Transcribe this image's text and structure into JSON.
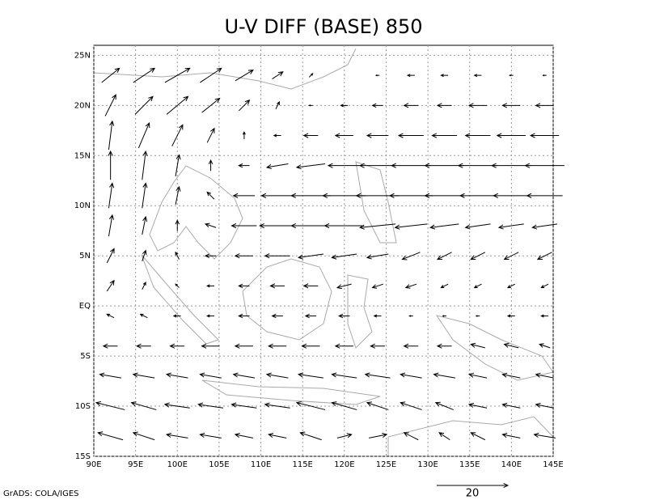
{
  "chart_data": {
    "type": "vector",
    "title": "U-V DIFF (BASE) 850",
    "footer": "GrADS: COLA/IGES",
    "reference_vector": 20,
    "color": "#000000",
    "grid": true,
    "xlim": [
      90,
      145
    ],
    "ylim": [
      -15,
      26
    ],
    "xticks": [
      {
        "value": 90,
        "label": "90E"
      },
      {
        "value": 95,
        "label": "95E"
      },
      {
        "value": 100,
        "label": "100E"
      },
      {
        "value": 105,
        "label": "105E"
      },
      {
        "value": 110,
        "label": "110E"
      },
      {
        "value": 115,
        "label": "115E"
      },
      {
        "value": 120,
        "label": "120E"
      },
      {
        "value": 125,
        "label": "125E"
      },
      {
        "value": 130,
        "label": "130E"
      },
      {
        "value": 135,
        "label": "135E"
      },
      {
        "value": 140,
        "label": "140E"
      },
      {
        "value": 145,
        "label": "145E"
      }
    ],
    "yticks": [
      {
        "value": -15,
        "label": "15S"
      },
      {
        "value": -10,
        "label": "10S"
      },
      {
        "value": -5,
        "label": "5S"
      },
      {
        "value": 0,
        "label": "EQ"
      },
      {
        "value": 5,
        "label": "5N"
      },
      {
        "value": 10,
        "label": "10N"
      },
      {
        "value": 15,
        "label": "15N"
      },
      {
        "value": 20,
        "label": "20N"
      },
      {
        "value": 25,
        "label": "25N"
      }
    ],
    "lons": [
      92,
      96,
      100,
      104,
      108,
      112,
      116,
      120,
      124,
      128,
      132,
      136,
      140,
      144
    ],
    "lats": [
      23,
      20,
      17,
      14,
      11,
      8,
      5,
      2,
      -1,
      -4,
      -7,
      -10,
      -13
    ],
    "u": [
      [
        5,
        6,
        7,
        6,
        5,
        3,
        1,
        0,
        -1,
        -2,
        -2,
        -2,
        -1,
        -1
      ],
      [
        3,
        5,
        6,
        5,
        3,
        1,
        -1,
        -2,
        -3,
        -4,
        -4,
        -5,
        -5,
        -5
      ],
      [
        1,
        3,
        3,
        2,
        0,
        -2,
        -4,
        -5,
        -6,
        -7,
        -7,
        -7,
        -8,
        -8
      ],
      [
        0,
        1,
        1,
        0,
        -3,
        -6,
        -8,
        -9,
        -10,
        -11,
        -11,
        -11,
        -11,
        -11
      ],
      [
        1,
        1,
        1,
        -2,
        -6,
        -9,
        -11,
        -12,
        -12,
        -12,
        -11,
        -10,
        -10,
        -10
      ],
      [
        1,
        1,
        0,
        -3,
        -7,
        -10,
        -11,
        -11,
        -10,
        -9,
        -8,
        -7,
        -7,
        -7
      ],
      [
        2,
        1,
        -1,
        -3,
        -5,
        -7,
        -7,
        -7,
        -6,
        -5,
        -4,
        -4,
        -4,
        -4
      ],
      [
        2,
        1,
        -1,
        -2,
        -3,
        -4,
        -4,
        -4,
        -3,
        -3,
        -2,
        -2,
        -2,
        -2
      ],
      [
        -2,
        -2,
        -2,
        -2,
        -3,
        -3,
        -3,
        -3,
        -2,
        -1,
        -1,
        -1,
        -2,
        -2
      ],
      [
        -4,
        -4,
        -4,
        -5,
        -5,
        -5,
        -5,
        -5,
        -4,
        -4,
        -4,
        -4,
        -4,
        -3
      ],
      [
        -6,
        -6,
        -6,
        -6,
        -6,
        -6,
        -7,
        -7,
        -7,
        -6,
        -6,
        -5,
        -5,
        -5
      ],
      [
        -8,
        -7,
        -7,
        -7,
        -7,
        -7,
        -8,
        -7,
        -6,
        -6,
        -5,
        -5,
        -5,
        -5
      ],
      [
        -7,
        -6,
        -6,
        -6,
        -5,
        -5,
        -6,
        4,
        5,
        -4,
        -3,
        -4,
        -5,
        -6
      ]
    ],
    "v": [
      [
        4,
        4,
        4,
        4,
        3,
        2,
        1,
        0,
        0,
        0,
        0,
        0,
        0,
        0
      ],
      [
        6,
        5,
        5,
        4,
        3,
        2,
        0,
        0,
        0,
        0,
        0,
        0,
        0,
        0
      ],
      [
        8,
        7,
        6,
        4,
        2,
        0,
        0,
        0,
        0,
        0,
        0,
        0,
        0,
        0
      ],
      [
        8,
        8,
        6,
        3,
        0,
        -1,
        -1,
        0,
        0,
        0,
        0,
        0,
        0,
        0
      ],
      [
        7,
        7,
        5,
        2,
        0,
        0,
        0,
        0,
        0,
        0,
        0,
        0,
        0,
        0
      ],
      [
        6,
        5,
        3,
        1,
        0,
        0,
        0,
        0,
        -1,
        -1,
        -1,
        -1,
        -1,
        -1
      ],
      [
        4,
        3,
        2,
        0,
        0,
        0,
        -1,
        -1,
        -1,
        -2,
        -2,
        -2,
        -2,
        -2
      ],
      [
        3,
        2,
        1,
        0,
        0,
        0,
        0,
        -1,
        -1,
        -1,
        -1,
        -1,
        -1,
        -1
      ],
      [
        1,
        1,
        0,
        0,
        0,
        0,
        0,
        0,
        0,
        0,
        0,
        0,
        0,
        0
      ],
      [
        0,
        0,
        0,
        0,
        0,
        0,
        0,
        0,
        0,
        0,
        0,
        1,
        1,
        1
      ],
      [
        1,
        1,
        1,
        1,
        1,
        1,
        1,
        1,
        1,
        1,
        1,
        1,
        1,
        1
      ],
      [
        2,
        2,
        1,
        1,
        1,
        1,
        2,
        2,
        2,
        2,
        2,
        1,
        1,
        1
      ],
      [
        2,
        2,
        1,
        1,
        1,
        1,
        2,
        1,
        1,
        2,
        2,
        2,
        1,
        1
      ]
    ]
  }
}
